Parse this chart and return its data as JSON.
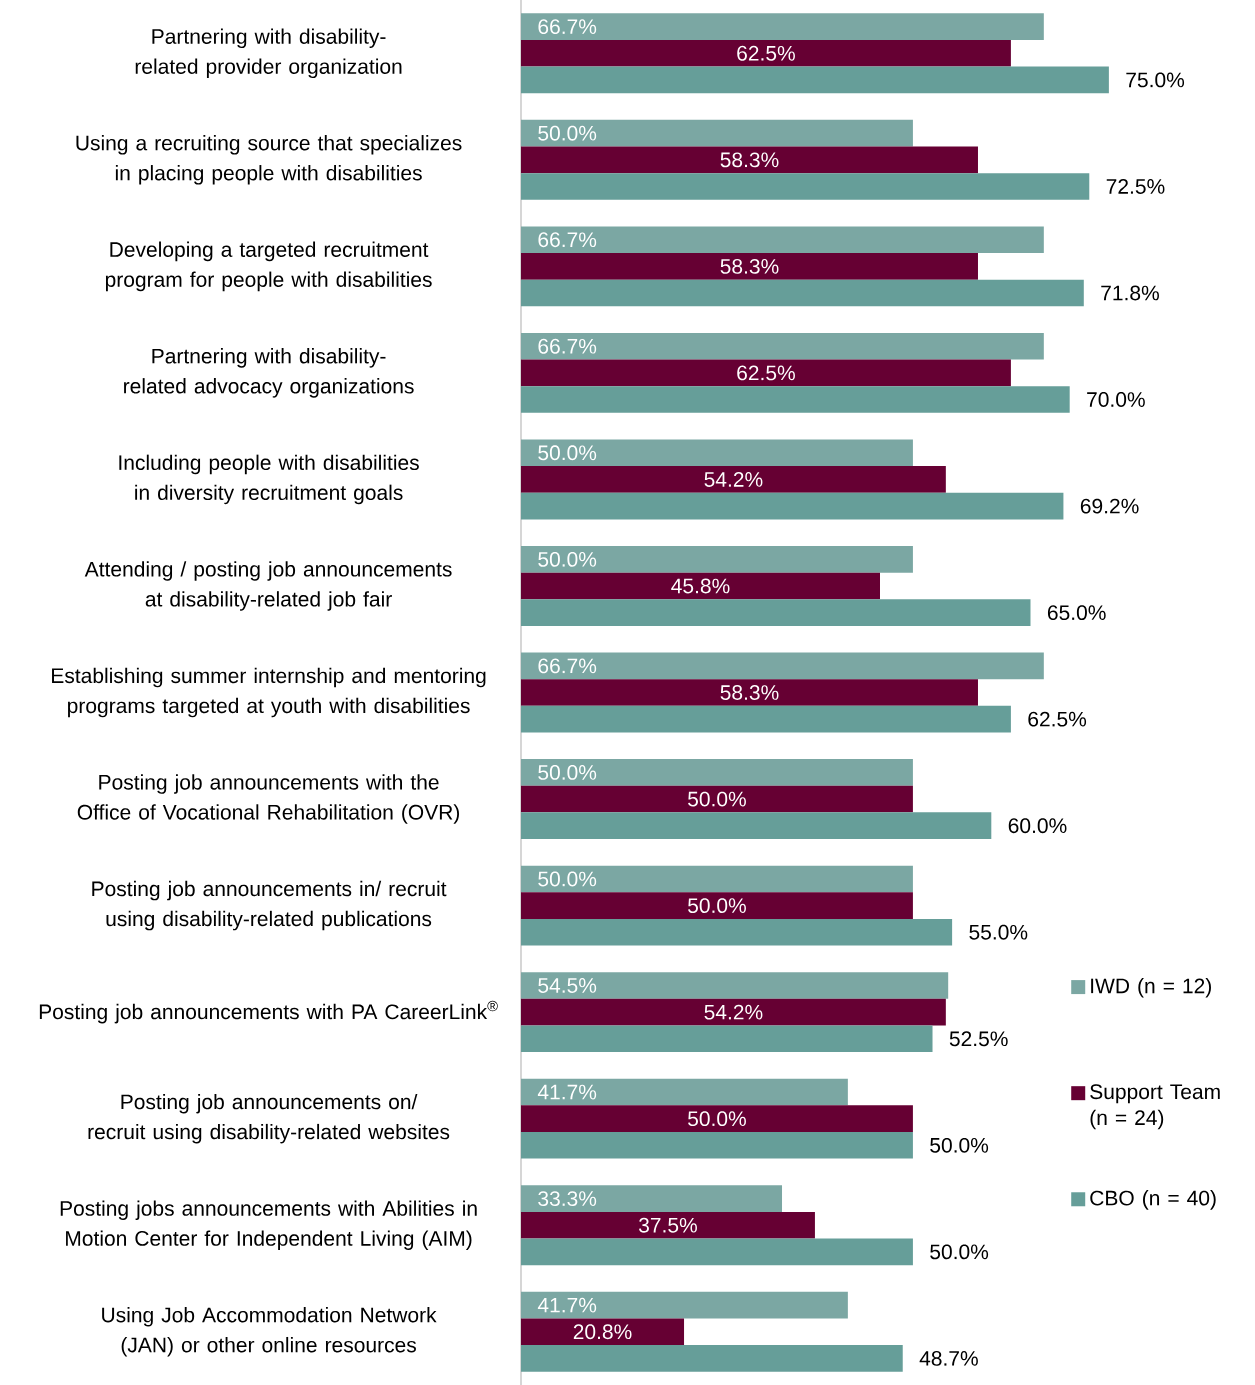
{
  "chart_data": {
    "type": "bar",
    "orientation": "horizontal",
    "legend": "right",
    "categories": [
      "Partnering with disability-related provider organization",
      "Using a recruiting source that specializes in placing people with disabilities",
      "Developing a targeted recruitment program for people with disabilities",
      "Partnering with disability-related advocacy organizations",
      "Including people with disabilities in diversity recruitment goals",
      "Attending / posting job announcements at disability-related job fair",
      "Establishing summer internship and mentoring programs targeted at youth with disabilities",
      "Posting job announcements with the Office of Vocational Rehabilitation (OVR)",
      "Posting job announcements in/ recruit using disability-related publications",
      "Posting job announcements with PA CareerLink$^{®}$",
      "Posting job announcements on/ recruit using disability-related websites",
      "Posting jobs announcements with Abilities in Motion Center for Independent Living (AIM)",
      "Using Job Accommodation Network (JAN) or other online resources"
    ],
    "series": [
      {
        "name": "IWD (n = 12)",
        "color": "#7ba7a3",
        "values": [
          66.7,
          50.0,
          66.7,
          66.7,
          50.0,
          50.0,
          66.7,
          50.0,
          50.0,
          54.5,
          41.7,
          33.3,
          41.7
        ],
        "value_labels": [
          "66.7%",
          "50.0%",
          "66.7%",
          "66.7%",
          "50.0%",
          "50.0%",
          "66.7%",
          "50.0%",
          "50.0%",
          "54.5%",
          "41.7%",
          "33.3%",
          "41.7%"
        ]
      },
      {
        "name": "Support Team (n = 24)",
        "color": "#660033",
        "values": [
          62.5,
          58.3,
          58.3,
          62.5,
          54.2,
          45.8,
          58.3,
          50.0,
          50.0,
          54.2,
          50.0,
          37.5,
          20.8
        ],
        "value_labels": [
          "62.5%",
          "58.3%",
          "58.3%",
          "62.5%",
          "54.2%",
          "45.8%",
          "58.3%",
          "50.0%",
          "50.0%",
          "54.2%",
          "50.0%",
          "37.5%",
          "20.8%"
        ]
      },
      {
        "name": "CBO (n = 40)",
        "color": "#669e99",
        "values": [
          75.0,
          72.5,
          71.8,
          70.0,
          69.2,
          65.0,
          62.5,
          60.0,
          55.0,
          52.5,
          50.0,
          50.0,
          48.7
        ],
        "value_labels": [
          "75.0%",
          "72.5%",
          "71.8%",
          "70.0%",
          "69.2%",
          "65.0%",
          "62.5%",
          "60.0%",
          "55.0%",
          "52.5%",
          "50.0%",
          "50.0%",
          "48.7%"
        ]
      }
    ]
  }
}
